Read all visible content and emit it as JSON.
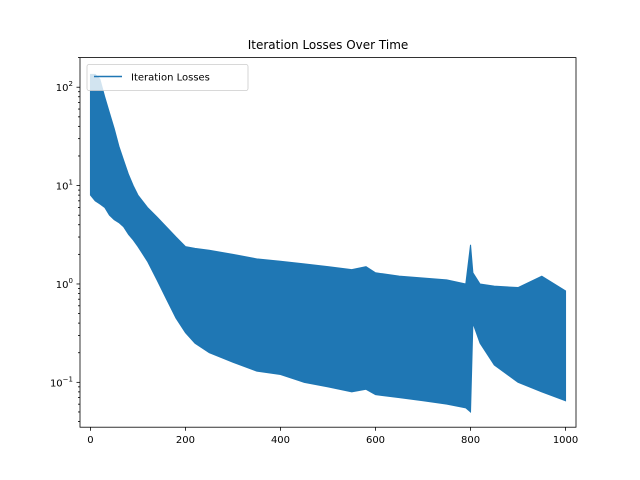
{
  "chart_data": {
    "type": "line",
    "title": "Iteration Losses Over Time",
    "xlabel": "",
    "ylabel": "",
    "xlim": [
      -22,
      1022
    ],
    "ylim": [
      0.035,
      200
    ],
    "yscale": "log",
    "grid": false,
    "legend": {
      "placement": "top-left",
      "entries": [
        "Iteration Losses"
      ]
    },
    "x_ticks": [
      0,
      200,
      400,
      600,
      800,
      1000
    ],
    "x_tick_labels": [
      "0",
      "200",
      "400",
      "600",
      "800",
      "1000"
    ],
    "y_ticks": [
      0.1,
      1,
      10,
      100
    ],
    "y_tick_labels": [
      {
        "base": "10",
        "exp": "−1"
      },
      {
        "base": "10",
        "exp": "0"
      },
      {
        "base": "10",
        "exp": "1"
      },
      {
        "base": "10",
        "exp": "2"
      }
    ],
    "series": [
      {
        "name": "Iteration Losses",
        "color": "#1f77b4",
        "envelope_x": [
          0,
          10,
          20,
          30,
          40,
          50,
          60,
          70,
          80,
          90,
          100,
          120,
          140,
          160,
          180,
          200,
          220,
          250,
          300,
          350,
          400,
          450,
          500,
          550,
          580,
          600,
          650,
          700,
          750,
          790,
          800,
          805,
          820,
          850,
          900,
          950,
          1000
        ],
        "envelope_upper": [
          135,
          135,
          120,
          80,
          55,
          38,
          25,
          18,
          13,
          10,
          8,
          6,
          4.8,
          3.8,
          3.0,
          2.4,
          2.3,
          2.2,
          2.0,
          1.8,
          1.7,
          1.6,
          1.5,
          1.4,
          1.5,
          1.3,
          1.2,
          1.15,
          1.1,
          1.0,
          2.5,
          1.3,
          1.0,
          0.95,
          0.92,
          1.2,
          0.85
        ],
        "envelope_lower": [
          8,
          7,
          6.5,
          6,
          5,
          4.5,
          4.2,
          3.8,
          3.2,
          2.8,
          2.4,
          1.7,
          1.1,
          0.7,
          0.45,
          0.32,
          0.25,
          0.2,
          0.16,
          0.13,
          0.12,
          0.1,
          0.09,
          0.08,
          0.085,
          0.075,
          0.07,
          0.065,
          0.06,
          0.055,
          0.05,
          0.4,
          0.25,
          0.15,
          0.1,
          0.08,
          0.065
        ]
      }
    ]
  }
}
